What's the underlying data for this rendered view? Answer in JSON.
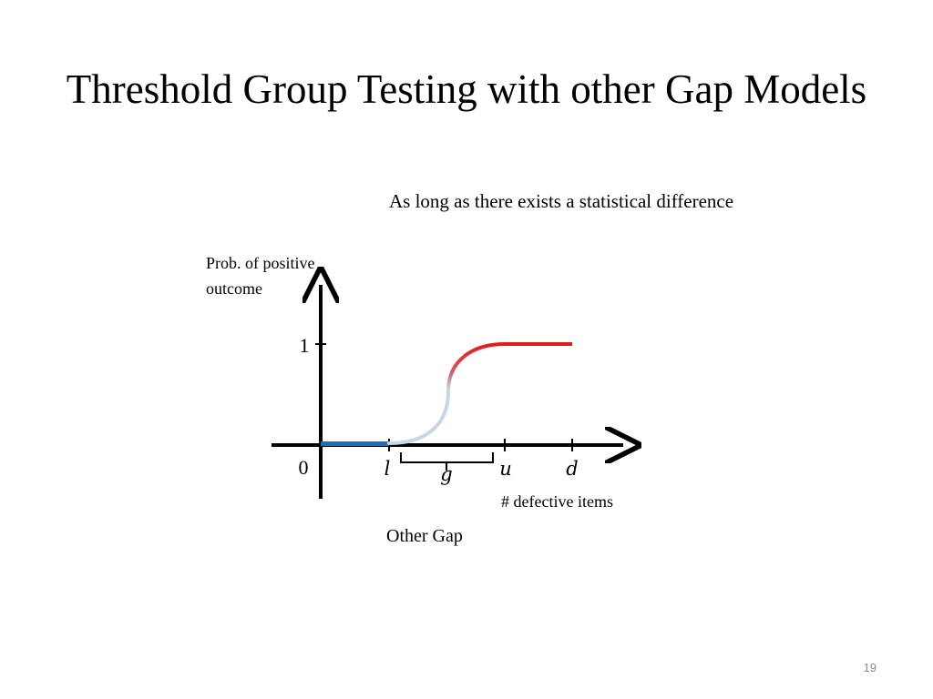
{
  "slide": {
    "title": "Threshold Group Testing with other Gap Models",
    "caption": "As long as there exists a statistical difference",
    "page_number": "19"
  },
  "diagram": {
    "y_axis_label_line1": "Prob. of positive",
    "y_axis_label_line2": "outcome",
    "x_axis_label": "# defective items",
    "y_tick_top": "1",
    "origin_label": "0",
    "tick_l": "l",
    "tick_g": "g",
    "tick_u": "u",
    "tick_d": "d",
    "bottom_caption": "Other Gap",
    "colors": {
      "axis": "#000000",
      "zero_segment": "#1f6fb8",
      "gap_low": "#c5d5ea",
      "gap_high": "#e31a1c",
      "one_segment": "#e31a1c"
    }
  }
}
